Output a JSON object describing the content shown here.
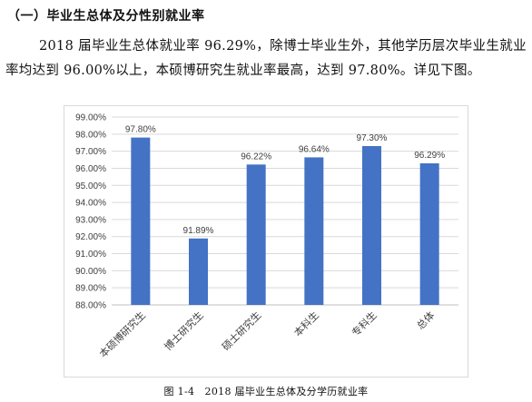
{
  "section_heading": "（一）毕业生总体及分性别就业率",
  "paragraph": "2018 届毕业生总体就业率 96.29%，除博士毕业生外，其他学历层次毕业生就业率均达到 96.00%以上，本硕博研究生就业率最高，达到 97.80%。详见下图。",
  "caption": "图 1-4　2018 届毕业生总体及分学历就业率",
  "colors": {
    "bar": "#4472c4",
    "grid": "#d9d9d9",
    "axis": "#bfbfbf",
    "text": "#404040"
  },
  "chart_data": {
    "type": "bar",
    "title": "",
    "xlabel": "",
    "ylabel": "",
    "categories": [
      "本硕博研究生",
      "博士研究生",
      "硕士研究生",
      "本科生",
      "专科生",
      "总体"
    ],
    "values": [
      97.8,
      91.89,
      96.22,
      96.64,
      97.3,
      96.29
    ],
    "value_labels": [
      "97.80%",
      "91.89%",
      "96.22%",
      "96.64%",
      "97.30%",
      "96.29%"
    ],
    "ylim": [
      88,
      99
    ],
    "yticks": [
      "88.00%",
      "89.00%",
      "90.00%",
      "91.00%",
      "92.00%",
      "93.00%",
      "94.00%",
      "95.00%",
      "96.00%",
      "97.00%",
      "98.00%",
      "99.00%"
    ],
    "grid": true,
    "legend": "none",
    "x_tick_rotation": "diagonal"
  }
}
